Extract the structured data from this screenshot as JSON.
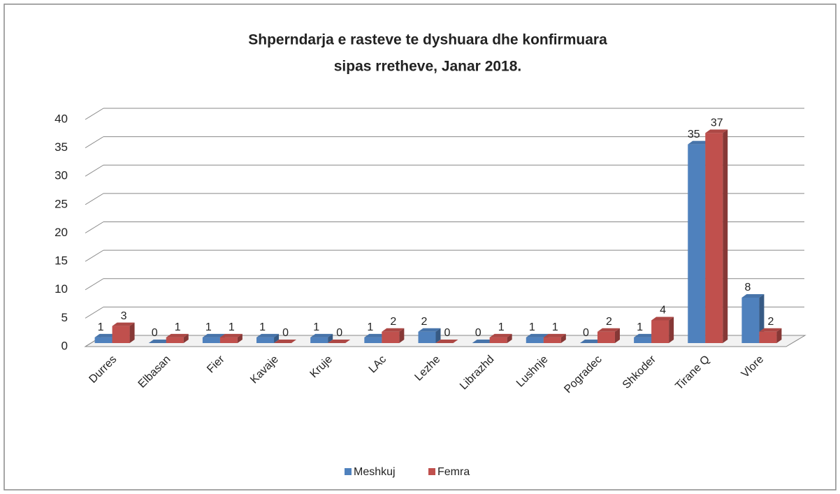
{
  "chart_data": {
    "type": "bar3d",
    "title": [
      "Shperndarja e rasteve te dyshuara dhe konfirmuara",
      "sipas rretheve, Janar 2018."
    ],
    "categories": [
      "Durres",
      "Elbasan",
      "Fier",
      "Kavaje",
      "Kruje",
      "LAc",
      "Lezhe",
      "Librazhd",
      "Lushnje",
      "Pogradec",
      "Shkoder",
      "Tirane Q",
      "Vlore"
    ],
    "series": [
      {
        "name": "Meshkuj",
        "color": "#4f81bd",
        "values": [
          1,
          0,
          1,
          1,
          1,
          1,
          2,
          0,
          1,
          0,
          1,
          35,
          8
        ]
      },
      {
        "name": "Femra",
        "color": "#c0504d",
        "values": [
          3,
          1,
          1,
          0,
          0,
          2,
          0,
          1,
          1,
          2,
          4,
          37,
          2
        ]
      }
    ],
    "ylim": [
      0,
      40
    ],
    "yticks": [
      0,
      5,
      10,
      15,
      20,
      25,
      30,
      35,
      40
    ],
    "grid": true,
    "legend": "bottom"
  }
}
